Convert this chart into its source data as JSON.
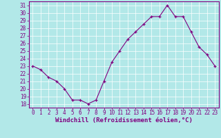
{
  "x": [
    0,
    1,
    2,
    3,
    4,
    5,
    6,
    7,
    8,
    9,
    10,
    11,
    12,
    13,
    14,
    15,
    16,
    17,
    18,
    19,
    20,
    21,
    22,
    23
  ],
  "y": [
    23.0,
    22.5,
    21.5,
    21.0,
    20.0,
    18.5,
    18.5,
    18.0,
    18.5,
    21.0,
    23.5,
    25.0,
    26.5,
    27.5,
    28.5,
    29.5,
    29.5,
    31.0,
    29.5,
    29.5,
    27.5,
    25.5,
    24.5,
    23.0
  ],
  "xlim": [
    -0.5,
    23.5
  ],
  "ylim": [
    17.5,
    31.5
  ],
  "yticks": [
    18,
    19,
    20,
    21,
    22,
    23,
    24,
    25,
    26,
    27,
    28,
    29,
    30,
    31
  ],
  "xticks": [
    0,
    1,
    2,
    3,
    4,
    5,
    6,
    7,
    8,
    9,
    10,
    11,
    12,
    13,
    14,
    15,
    16,
    17,
    18,
    19,
    20,
    21,
    22,
    23
  ],
  "xlabel": "Windchill (Refroidissement éolien,°C)",
  "line_color": "#800080",
  "marker": "+",
  "bg_color": "#b2e8e8",
  "grid_color": "#ffffff",
  "tick_color": "#800080",
  "label_color": "#800080",
  "tick_fontsize": 5.5,
  "xlabel_fontsize": 6.5
}
